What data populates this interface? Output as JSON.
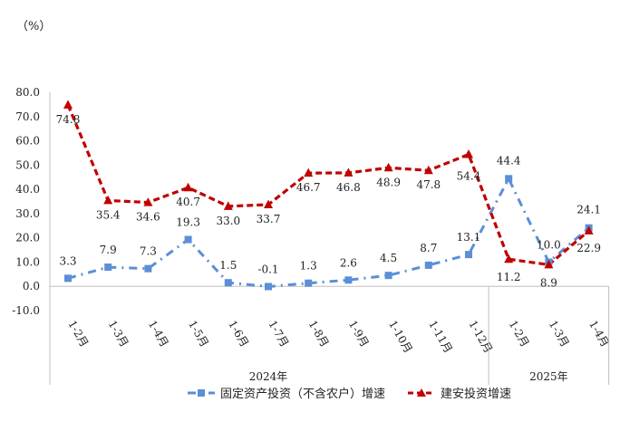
{
  "chart_data": {
    "type": "line",
    "unit_label": "（%）",
    "y_ticks": [
      "80.0",
      "70.0",
      "60.0",
      "50.0",
      "40.0",
      "30.0",
      "20.0",
      "10.0",
      "0.0",
      "-10.0"
    ],
    "ylim": [
      -10,
      80
    ],
    "grid": false,
    "categories": [
      "1-2月",
      "1-3月",
      "1-4月",
      "1-5月",
      "1-6月",
      "1-7月",
      "1-8月",
      "1-9月",
      "1-10月",
      "1-11月",
      "1-12月",
      "1-2月",
      "1-3月",
      "1-4月"
    ],
    "year_groups": [
      {
        "label": "2024年",
        "count": 11
      },
      {
        "label": "2025年",
        "count": 3
      }
    ],
    "series": [
      {
        "name": "固定资产投资（不含农户）增速",
        "color": "#5b8fd6",
        "marker": "square",
        "line_style": "dash-dot",
        "values": [
          3.3,
          7.9,
          7.3,
          19.3,
          1.5,
          -0.1,
          1.3,
          2.6,
          4.5,
          8.7,
          13.1,
          44.4,
          10.0,
          24.1
        ],
        "labels": [
          "3.3",
          "7.9",
          "7.3",
          "19.3",
          "1.5",
          "-0.1",
          "1.3",
          "2.6",
          "4.5",
          "8.7",
          "13.1",
          "44.4",
          "10.0",
          "24.1"
        ]
      },
      {
        "name": "建安投资增速",
        "color": "#c00000",
        "marker": "triangle",
        "line_style": "dashed",
        "values": [
          74.8,
          35.4,
          34.6,
          40.7,
          33.0,
          33.7,
          46.7,
          46.8,
          48.9,
          47.8,
          54.4,
          11.2,
          8.9,
          22.9
        ],
        "labels": [
          "74.8",
          "35.4",
          "34.6",
          "40.7",
          "33.0",
          "33.7",
          "46.7",
          "46.8",
          "48.9",
          "47.8",
          "54.4",
          "11.2",
          "8.9",
          "22.9"
        ]
      }
    ],
    "legend": {
      "position": "bottom"
    }
  }
}
